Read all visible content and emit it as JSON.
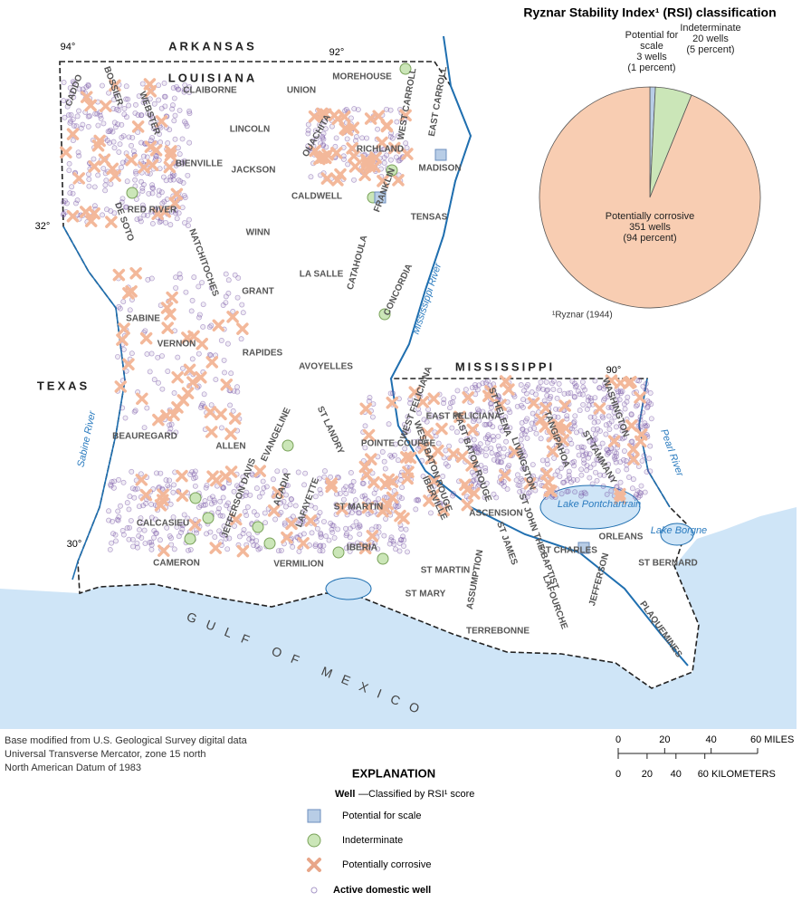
{
  "map": {
    "states": [
      "ARKANSAS",
      "LOUISIANA",
      "MISSISSIPPI",
      "TEXAS"
    ],
    "water": [
      "GULF OF MEXICO",
      "Sabine River",
      "Mississippi River",
      "Pearl River",
      "Lake Pontchartrain",
      "Lake Borgne"
    ],
    "coordinates": [
      "94°",
      "92°",
      "32°",
      "90°",
      "30°"
    ],
    "parishes": [
      "CADDO",
      "BOSSIER",
      "WEBSTER",
      "CLAIBORNE",
      "UNION",
      "MOREHOUSE",
      "WEST CARROLL",
      "EAST CARROLL",
      "LINCOLN",
      "OUACHITA",
      "RICHLAND",
      "MADISON",
      "BIENVILLE",
      "JACKSON",
      "DE SOTO",
      "RED RIVER",
      "CALDWELL",
      "FRANKLIN",
      "TENSAS",
      "WINN",
      "LA SALLE",
      "CATAHOULA",
      "CONCORDIA",
      "NATCHITOCHES",
      "GRANT",
      "SABINE",
      "RAPIDES",
      "VERNON",
      "AVOYELLES",
      "BEAUREGARD",
      "ALLEN",
      "EVANGELINE",
      "ST LANDRY",
      "POINTE COUPEE",
      "WEST FELICIANA",
      "EAST FELICIANA",
      "ST HELENA",
      "TANGIPAHOA",
      "WASHINGTON",
      "ST TAMMANY",
      "LIVINGSTON",
      "EAST BATON ROUGE",
      "WEST BATON ROUGE",
      "IBERVILLE",
      "ASCENSION",
      "ST JAMES",
      "ST JOHN THE BAPTIST",
      "ST CHARLES",
      "ORLEANS",
      "ST BERNARD",
      "JEFFERSON DAVIS",
      "ACADIA",
      "LAFAYETTE",
      "CALCASIEU",
      "ST MARTIN",
      "IBERIA",
      "VERMILION",
      "CAMERON",
      "ST MARTIN",
      "ST MARY",
      "ASSUMPTION",
      "LAFOURCHE",
      "JEFFERSON",
      "TERREBONNE",
      "PLAQUEMINES"
    ]
  },
  "chart_data": {
    "type": "pie",
    "title": "Ryznar Stability Index¹ (RSI) classification",
    "categories": [
      "Potential for scale",
      "Indeterminate",
      "Potentially corrosive"
    ],
    "values": [
      3,
      20,
      351
    ],
    "value_labels": [
      "3 wells",
      "20 wells",
      "351 wells"
    ],
    "percent_labels": [
      "(1 percent)",
      "(5 percent)",
      "(94 percent)"
    ],
    "colors": [
      "#b8cde6",
      "#cbe6b8",
      "#f8cdb2"
    ],
    "footnote": "¹Ryznar (1944)"
  },
  "source": [
    "Base modified from U.S. Geological Survey digital data",
    "Universal Transverse Mercator, zone 15 north",
    "North American Datum of 1983"
  ],
  "scale": {
    "miles_ticks": [
      0,
      20,
      40,
      {
        "value": 60,
        "label": "60 MILES"
      }
    ],
    "km_ticks": [
      0,
      20,
      40,
      {
        "value": 60,
        "label": "60 KILOMETERS"
      }
    ]
  },
  "explanation": {
    "title": "EXPLANATION",
    "heading": "Well",
    "heading_note": "—Classified by RSI¹ score",
    "items": [
      "Potential for scale",
      "Indeterminate",
      "Potentially corrosive",
      "Active domestic well"
    ]
  }
}
